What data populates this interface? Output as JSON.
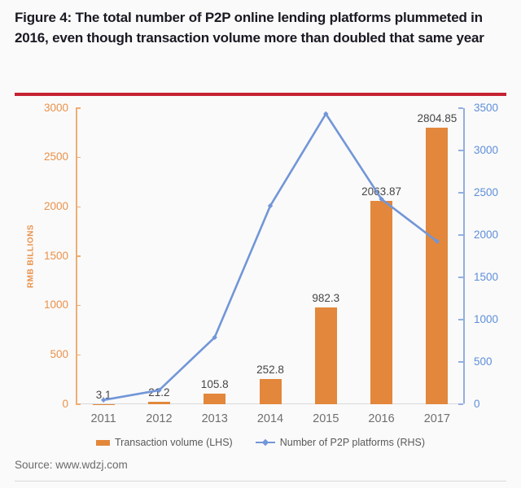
{
  "title": "Figure 4: The total number of P2P online lending platforms plummeted in 2016, even though transaction volume more than doubled that same year",
  "source": "Source: www.wdzj.com",
  "colors": {
    "background": "#FAFAFA",
    "title_text": "#191922",
    "red_rule": "#C52233",
    "bar_orange": "#E2873B",
    "line_blue": "#7296D8",
    "left_axis_text": "#EA9149",
    "left_axis_line": "#F0AC72",
    "right_axis_text": "#5E8FD8",
    "right_axis_line": "#92AFE0",
    "x_axis_line": "#D9D9D9",
    "x_label_text": "#6F6F6F",
    "data_label_text": "#464646",
    "legend_text": "#595959",
    "source_text": "#6B6B6B"
  },
  "chart_data": {
    "type": "combo",
    "categories": [
      "2011",
      "2012",
      "2013",
      "2014",
      "2015",
      "2016",
      "2017"
    ],
    "series": [
      {
        "name": "Transaction volume (LHS)",
        "type": "bar",
        "axis": "left",
        "values": [
          3.1,
          21.2,
          105.8,
          252.8,
          982.3,
          2063.87,
          2804.85
        ],
        "data_labels": [
          "3.1",
          "21.2",
          "105.8",
          "252.8",
          "982.3",
          "2063.87",
          "2804.85"
        ]
      },
      {
        "name": "Number of P2P platforms (RHS)",
        "type": "line",
        "axis": "right",
        "values": [
          50,
          165,
          790,
          2345,
          3433,
          2425,
          1925
        ],
        "values_note": "estimated from line position; values not labeled in chart"
      }
    ],
    "left_axis": {
      "label": "RMB BILLIONS",
      "min": 0,
      "max": 3000,
      "step": 500,
      "tick_labels": [
        "0",
        "500",
        "1000",
        "1500",
        "2000",
        "2500",
        "3000"
      ]
    },
    "right_axis": {
      "label": "",
      "min": 0,
      "max": 3500,
      "step": 500,
      "tick_labels": [
        "0",
        "500",
        "1000",
        "1500",
        "2000",
        "2500",
        "3000",
        "3500"
      ]
    },
    "grid": false,
    "legend_position": "bottom"
  }
}
